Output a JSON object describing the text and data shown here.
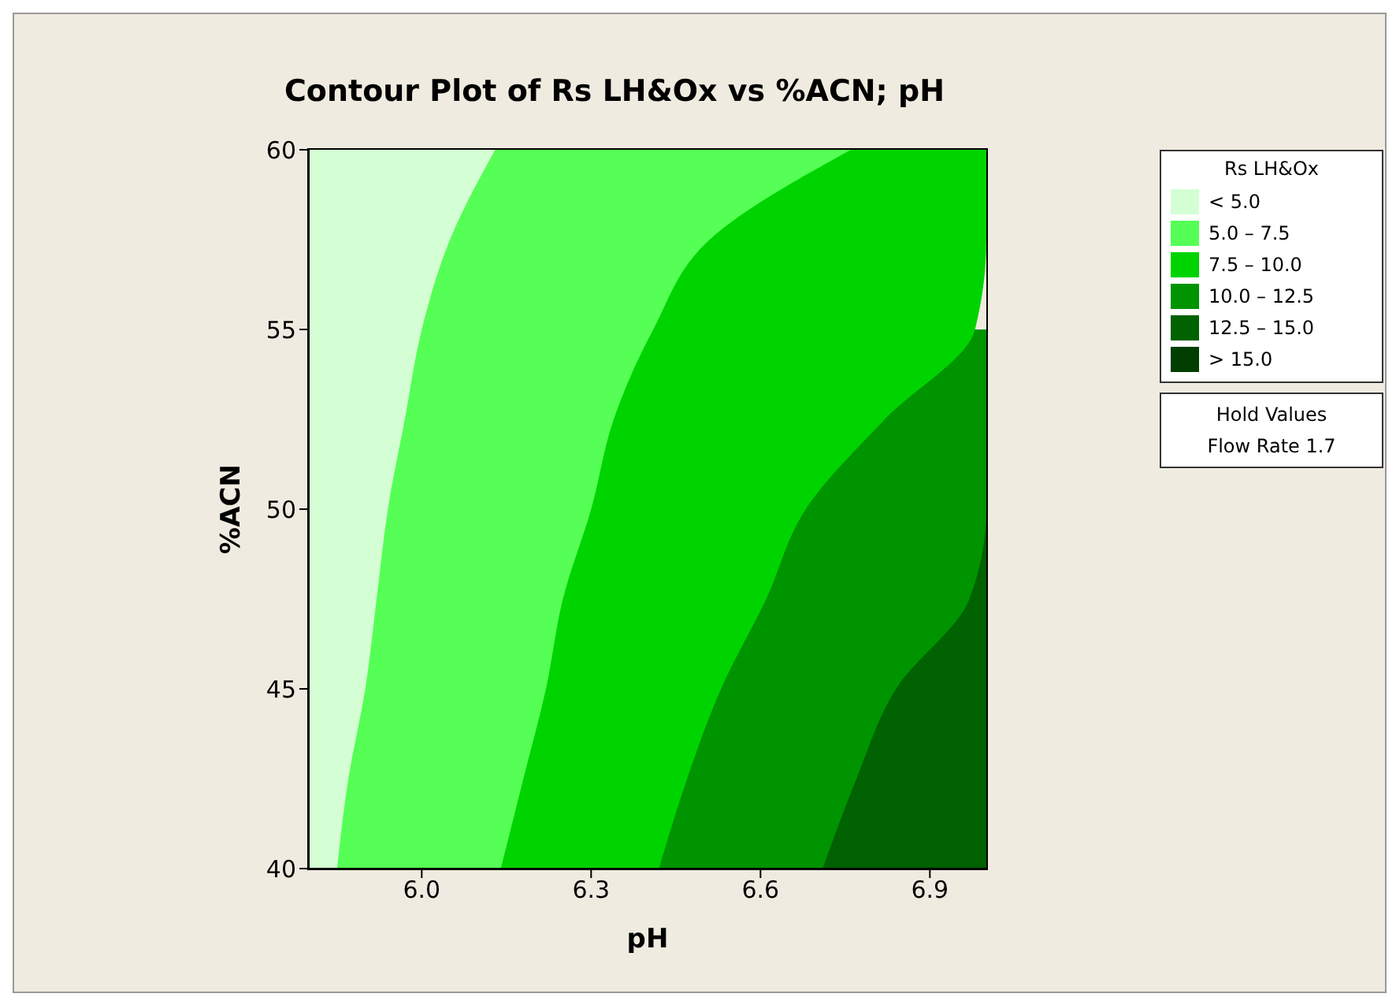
{
  "chart_data": {
    "type": "area",
    "title": "Contour Plot of Rs LH&Ox vs %ACN; pH",
    "xlabel": "pH",
    "ylabel": "%ACN",
    "legend_title": "Rs LH&Ox",
    "orientation": "horizontal",
    "legend": "top right",
    "x": [
      40,
      42.5,
      45,
      47.5,
      50,
      52.5,
      55,
      57.5,
      60
    ],
    "xlim": [
      5.8,
      7.0
    ],
    "xticks": [
      {
        "value": 6.0,
        "label": "6.0"
      },
      {
        "value": 6.3,
        "label": "6.3"
      },
      {
        "value": 6.6,
        "label": "6.6"
      },
      {
        "value": 6.9,
        "label": "6.9"
      }
    ],
    "ylim": [
      40,
      60
    ],
    "yticks": [
      40,
      45,
      50,
      55,
      60
    ],
    "series": [
      {
        "name": "< 5.0",
        "color": "#d4ffd4",
        "values": [
          5.85,
          5.87,
          5.9,
          5.92,
          5.94,
          5.97,
          6.0,
          6.05,
          6.13
        ]
      },
      {
        "name": "5.0 – 7.5",
        "color": "#55ff55",
        "values": [
          6.14,
          6.18,
          6.22,
          6.25,
          6.3,
          6.34,
          6.41,
          6.51,
          6.76
        ]
      },
      {
        "name": "7.5 – 10.0",
        "color": "#00d400",
        "values": [
          6.42,
          6.47,
          6.53,
          6.61,
          6.68,
          6.82,
          6.98,
          7.0,
          7.0
        ]
      },
      {
        "name": "10.0 – 12.5",
        "color": "#009400",
        "values": [
          6.71,
          6.77,
          6.84,
          6.97,
          7.0,
          7.0,
          7.0,
          null,
          null
        ]
      },
      {
        "name": "12.5 – 15.0",
        "color": "#006200",
        "values": [
          7.0,
          7.0,
          7.0,
          7.0,
          7.0,
          null,
          null,
          null,
          null
        ]
      },
      {
        "name": "> 15.0",
        "color": "#003f00",
        "values": [
          null,
          null,
          null,
          null,
          null,
          null,
          null,
          null,
          null
        ]
      }
    ],
    "annotations": [
      "Hold Values",
      "Flow Rate 1.7"
    ]
  }
}
